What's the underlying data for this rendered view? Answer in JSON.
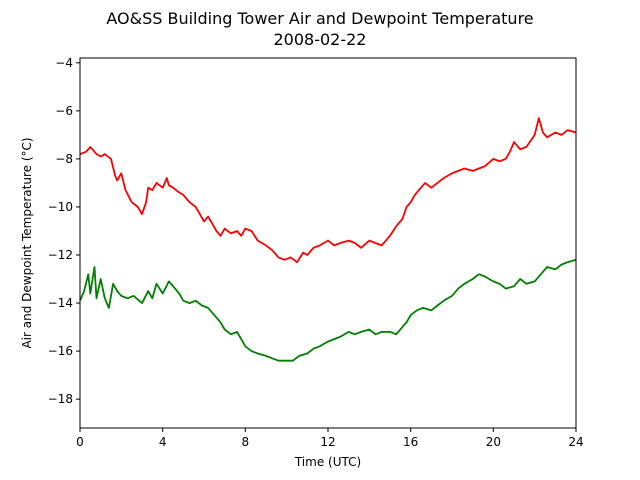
{
  "chart_data": {
    "type": "line",
    "title": "AO&SS Building Tower Air and Dewpoint Temperature",
    "subtitle": "2008-02-22",
    "xlabel": "Time (UTC)",
    "ylabel": "Air and Dewpoint Temperature (°C)",
    "xlim": [
      0,
      24
    ],
    "ylim": [
      -19.2,
      -3.8
    ],
    "xticks": [
      0,
      4,
      8,
      12,
      16,
      20,
      24
    ],
    "yticks": [
      -18,
      -16,
      -14,
      -12,
      -10,
      -8,
      -6,
      -4
    ],
    "xtick_labels": [
      "0",
      "4",
      "8",
      "12",
      "16",
      "20",
      "24"
    ],
    "ytick_labels": [
      "−18",
      "−16",
      "−14",
      "−12",
      "−10",
      "−8",
      "−6",
      "−4"
    ],
    "grid": false,
    "series": [
      {
        "color": "#ff0000",
        "x": [
          0,
          0.3,
          0.5,
          0.8,
          1.0,
          1.2,
          1.5,
          1.7,
          1.8,
          2.0,
          2.2,
          2.5,
          2.8,
          3.0,
          3.2,
          3.3,
          3.5,
          3.7,
          4.0,
          4.2,
          4.3,
          4.5,
          4.8,
          5.0,
          5.3,
          5.6,
          5.8,
          6.0,
          6.2,
          6.4,
          6.6,
          6.8,
          7.0,
          7.3,
          7.6,
          7.8,
          8.0,
          8.3,
          8.6,
          9.0,
          9.3,
          9.6,
          9.9,
          10.2,
          10.5,
          10.8,
          11.0,
          11.3,
          11.6,
          12.0,
          12.3,
          12.6,
          13.0,
          13.3,
          13.6,
          14.0,
          14.3,
          14.6,
          15.0,
          15.3,
          15.6,
          15.8,
          16.0,
          16.2,
          16.4,
          16.7,
          17.0,
          17.3,
          17.6,
          18.0,
          18.3,
          18.6,
          19.0,
          19.3,
          19.6,
          20.0,
          20.3,
          20.6,
          20.8,
          21.0,
          21.3,
          21.6,
          22.0,
          22.2,
          22.4,
          22.6,
          23.0,
          23.3,
          23.6,
          24.0
        ],
        "y": [
          -7.8,
          -7.7,
          -7.5,
          -7.8,
          -7.9,
          -7.8,
          -8.0,
          -8.7,
          -8.9,
          -8.6,
          -9.3,
          -9.8,
          -10.0,
          -10.3,
          -9.8,
          -9.2,
          -9.3,
          -9.0,
          -9.2,
          -8.8,
          -9.1,
          -9.2,
          -9.4,
          -9.5,
          -9.8,
          -10.0,
          -10.3,
          -10.6,
          -10.4,
          -10.7,
          -11.0,
          -11.2,
          -10.9,
          -11.1,
          -11.0,
          -11.2,
          -10.9,
          -11.0,
          -11.4,
          -11.6,
          -11.8,
          -12.1,
          -12.2,
          -12.1,
          -12.3,
          -11.9,
          -12.0,
          -11.7,
          -11.6,
          -11.4,
          -11.6,
          -11.5,
          -11.4,
          -11.5,
          -11.7,
          -11.4,
          -11.5,
          -11.6,
          -11.2,
          -10.8,
          -10.5,
          -10.0,
          -9.8,
          -9.5,
          -9.3,
          -9.0,
          -9.2,
          -9.0,
          -8.8,
          -8.6,
          -8.5,
          -8.4,
          -8.5,
          -8.4,
          -8.3,
          -8.0,
          -8.1,
          -8.0,
          -7.7,
          -7.3,
          -7.6,
          -7.5,
          -7.0,
          -6.3,
          -6.9,
          -7.1,
          -6.9,
          -7.0,
          -6.8,
          -6.9
        ]
      },
      {
        "color": "#008000",
        "x": [
          0,
          0.2,
          0.4,
          0.5,
          0.7,
          0.8,
          1.0,
          1.2,
          1.4,
          1.6,
          1.8,
          2.0,
          2.3,
          2.6,
          3.0,
          3.3,
          3.5,
          3.7,
          4.0,
          4.3,
          4.5,
          4.8,
          5.0,
          5.3,
          5.6,
          5.9,
          6.2,
          6.5,
          6.8,
          7.0,
          7.3,
          7.6,
          7.8,
          8.0,
          8.3,
          8.6,
          9.0,
          9.3,
          9.6,
          10.0,
          10.3,
          10.6,
          11.0,
          11.3,
          11.6,
          12.0,
          12.3,
          12.6,
          13.0,
          13.3,
          13.6,
          14.0,
          14.3,
          14.6,
          15.0,
          15.3,
          15.6,
          15.8,
          16.0,
          16.3,
          16.6,
          17.0,
          17.3,
          17.6,
          18.0,
          18.3,
          18.6,
          19.0,
          19.3,
          19.6,
          20.0,
          20.3,
          20.6,
          21.0,
          21.3,
          21.6,
          22.0,
          22.3,
          22.6,
          23.0,
          23.3,
          23.6,
          24.0
        ],
        "y": [
          -13.9,
          -13.5,
          -12.8,
          -13.6,
          -12.5,
          -13.8,
          -13.0,
          -13.8,
          -14.2,
          -13.2,
          -13.5,
          -13.7,
          -13.8,
          -13.7,
          -14.0,
          -13.5,
          -13.8,
          -13.2,
          -13.6,
          -13.1,
          -13.3,
          -13.6,
          -13.9,
          -14.0,
          -13.9,
          -14.1,
          -14.2,
          -14.5,
          -14.8,
          -15.1,
          -15.3,
          -15.2,
          -15.5,
          -15.8,
          -16.0,
          -16.1,
          -16.2,
          -16.3,
          -16.4,
          -16.4,
          -16.4,
          -16.2,
          -16.1,
          -15.9,
          -15.8,
          -15.6,
          -15.5,
          -15.4,
          -15.2,
          -15.3,
          -15.2,
          -15.1,
          -15.3,
          -15.2,
          -15.2,
          -15.3,
          -15.0,
          -14.8,
          -14.5,
          -14.3,
          -14.2,
          -14.3,
          -14.1,
          -13.9,
          -13.7,
          -13.4,
          -13.2,
          -13.0,
          -12.8,
          -12.9,
          -13.1,
          -13.2,
          -13.4,
          -13.3,
          -13.0,
          -13.2,
          -13.1,
          -12.8,
          -12.5,
          -12.6,
          -12.4,
          -12.3,
          -12.2
        ]
      }
    ]
  }
}
